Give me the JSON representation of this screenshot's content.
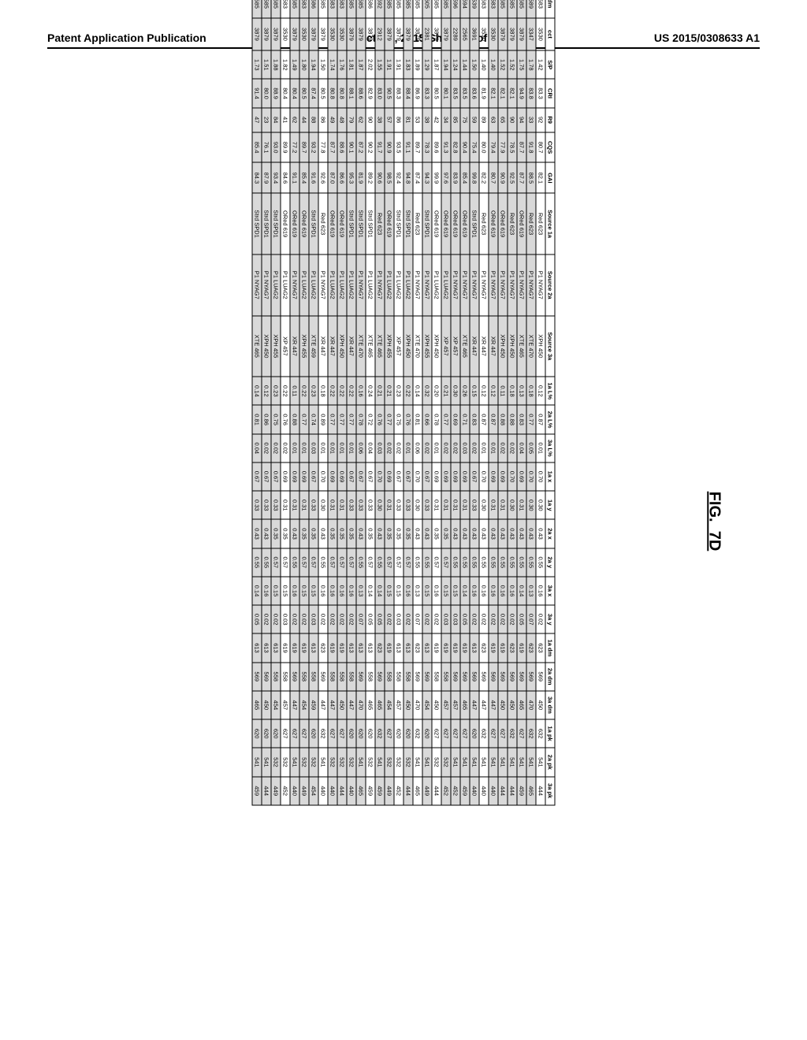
{
  "header": {
    "left": "Patent Application Publication",
    "center": "Oct. 29, 2015  Sheet 12 of 25",
    "right": "US 2015/0308633 A1"
  },
  "figure_label": "FIG._7D",
  "columns": [
    "#",
    "x",
    "y",
    "dm",
    "cct",
    "S/P",
    "CRI",
    "R9",
    "CQS",
    "GAI",
    "Source 1a",
    "Source 2a",
    "Source 3a",
    "1a L%",
    "2a L%",
    "3a L%",
    "1a x",
    "1a y",
    "2a x",
    "2a y",
    "3a x",
    "3a y",
    "1a dm",
    "2a dm",
    "3a dm",
    "1a pk",
    "2a pk",
    "3a pk"
  ],
  "shaded_rows": [
    95,
    96,
    97,
    98,
    99,
    101,
    102,
    103,
    104,
    106,
    108,
    110,
    111,
    113,
    114,
    115,
    116,
    118,
    119,
    120,
    122,
    123,
    124
  ],
  "rows": [
    {
      "n": 94,
      "x": 0.4,
      "y": 0.38,
      "dm": 583,
      "cct": 3530,
      "sp": 1.42,
      "cri": 83.3,
      "r9": 92,
      "cqs": 80.7,
      "gai": 82.1,
      "s1": "Red 623",
      "s2": "P1 NYAG7",
      "s3": "XPH 450",
      "l1": 0.12,
      "l2": 0.87,
      "l3": 0.01,
      "x1": 0.7,
      "y1": 0.3,
      "x2": 0.43,
      "y2": 0.55,
      "x3": 0.16,
      "y3": 0.02,
      "d1": 623,
      "d2": 569,
      "d3": 450,
      "p1": 632,
      "p2": 541,
      "p3": 444
    },
    {
      "n": 95,
      "x": 0.4,
      "y": 0.36,
      "dm": 589,
      "cct": 3347,
      "sp": 1.78,
      "cri": 83.8,
      "r9": 33,
      "cqs": 91.8,
      "gai": 88.5,
      "s1": "Red 623",
      "s2": "P1 NYAG7",
      "s3": "XTE 470",
      "l1": 0.18,
      "l2": 0.77,
      "l3": 0.05,
      "x1": 0.7,
      "y1": 0.3,
      "x2": 0.43,
      "y2": 0.55,
      "x3": 0.13,
      "y3": 0.07,
      "d1": 623,
      "d2": 569,
      "d3": 470,
      "p1": 632,
      "p2": 541,
      "p3": 465
    },
    {
      "n": 96,
      "x": 0.38,
      "y": 0.36,
      "dm": 585,
      "cct": 3879,
      "sp": 1.75,
      "cri": 94.9,
      "r9": 94,
      "cqs": 87.7,
      "gai": 87.7,
      "s1": "ORed 619",
      "s2": "P1 NYAG7",
      "s3": "XTE 465",
      "l1": 0.13,
      "l2": 0.83,
      "l3": 0.04,
      "x1": 0.69,
      "y1": 0.31,
      "x2": 0.43,
      "y2": 0.55,
      "x3": 0.14,
      "y3": 0.05,
      "d1": 619,
      "d2": 569,
      "d3": 465,
      "p1": 627,
      "p2": 541,
      "p3": 459
    },
    {
      "n": 97,
      "x": 0.38,
      "y": 0.36,
      "dm": 585,
      "cct": 3879,
      "sp": 1.52,
      "cri": 82.1,
      "r9": 90,
      "cqs": 78.5,
      "gai": 92.5,
      "s1": "Red 623",
      "s2": "P1 NYAG7",
      "s3": "XPH 450",
      "l1": 0.18,
      "l2": 0.88,
      "l3": 0.02,
      "x1": 0.7,
      "y1": 0.3,
      "x2": 0.43,
      "y2": 0.55,
      "x3": 0.16,
      "y3": 0.02,
      "d1": 623,
      "d2": 569,
      "d3": 450,
      "p1": 632,
      "p2": 541,
      "p3": 444
    },
    {
      "n": 98,
      "x": 0.38,
      "y": 0.36,
      "dm": 585,
      "cct": 3879,
      "sp": 1.52,
      "cri": 82.1,
      "r9": 65,
      "cqs": 77.9,
      "gai": 90.9,
      "s1": "ORed 619",
      "s2": "P1 NYAG7",
      "s3": "XPH 450",
      "l1": 0.11,
      "l2": 0.88,
      "l3": 0.02,
      "x1": 0.69,
      "y1": 0.31,
      "x2": 0.43,
      "y2": 0.55,
      "x3": 0.16,
      "y3": 0.02,
      "d1": 619,
      "d2": 569,
      "d3": 450,
      "p1": 627,
      "p2": 541,
      "p3": 444
    },
    {
      "n": 99,
      "x": 0.4,
      "y": 0.38,
      "dm": 583,
      "cct": 3530,
      "sp": 1.4,
      "cri": 82.1,
      "r9": 63,
      "cqs": 79.4,
      "gai": 80.7,
      "s1": "ORed 619",
      "s2": "P1 NYAG7",
      "s3": "XR 447",
      "l1": 0.12,
      "l2": 0.87,
      "l3": 0.01,
      "x1": 0.69,
      "y1": 0.31,
      "x2": 0.43,
      "y2": 0.55,
      "x3": 0.16,
      "y3": 0.02,
      "d1": 619,
      "d2": 569,
      "d3": 447,
      "p1": 627,
      "p2": 541,
      "p3": 440
    },
    {
      "n": 100,
      "x": 0.4,
      "y": 0.36,
      "dm": 583,
      "cct": 3530,
      "sp": 1.4,
      "cri": 81.9,
      "r9": 89,
      "cqs": 80.0,
      "gai": 82.2,
      "s1": "Red 623",
      "s2": "P1 NYAG7",
      "s3": "XR 447",
      "l1": 0.12,
      "l2": 0.87,
      "l3": 0.01,
      "x1": 0.7,
      "y1": 0.3,
      "x2": 0.43,
      "y2": 0.55,
      "x3": 0.16,
      "y3": 0.02,
      "d1": 623,
      "d2": 569,
      "d3": 447,
      "p1": 632,
      "p2": 541,
      "p3": 440
    },
    {
      "n": 101,
      "x": 0.38,
      "y": 0.34,
      "dm": 539,
      "cct": 3691,
      "sp": 1.5,
      "cri": 83.6,
      "r9": 59,
      "cqs": 75.4,
      "gai": 99.8,
      "s1": "Strd SPD1",
      "s2": "P1 NYAG7",
      "s3": "XR 447",
      "l1": 0.15,
      "l2": 0.83,
      "l3": 0.02,
      "x1": 0.67,
      "y1": 0.33,
      "x2": 0.43,
      "y2": 0.55,
      "x3": 0.16,
      "y3": 0.02,
      "d1": 613,
      "d2": 569,
      "d3": 447,
      "p1": 620,
      "p2": 541,
      "p3": 440
    },
    {
      "n": 102,
      "x": 0.44,
      "y": 0.4,
      "dm": 594,
      "cct": 2565,
      "sp": 1.44,
      "cri": 83.5,
      "r9": 75,
      "cqs": 90.4,
      "gai": 85.4,
      "s1": "ORed 619",
      "s2": "P1 NYAG7",
      "s3": "XTE 465",
      "l1": 0.26,
      "l2": 0.71,
      "l3": 0.03,
      "x1": 0.69,
      "y1": 0.31,
      "x2": 0.43,
      "y2": 0.55,
      "x3": 0.14,
      "y3": 0.05,
      "d1": 619,
      "d2": 569,
      "d3": 465,
      "p1": 627,
      "p2": 541,
      "p3": 459
    },
    {
      "n": 103,
      "x": 0.46,
      "y": 0.36,
      "dm": 596,
      "cct": 2289,
      "sp": 1.24,
      "cri": 83.5,
      "r9": 85,
      "cqs": 82.8,
      "gai": 83.9,
      "s1": "ORed 619",
      "s2": "P1 NYAG7",
      "s3": "XP 457",
      "l1": 0.3,
      "l2": 0.69,
      "l3": 0.02,
      "x1": 0.69,
      "y1": 0.31,
      "x2": 0.43,
      "y2": 0.55,
      "x3": 0.15,
      "y3": 0.03,
      "d1": 619,
      "d2": 569,
      "d3": 457,
      "p1": 627,
      "p2": 541,
      "p3": 452
    },
    {
      "n": 104,
      "x": 0.38,
      "y": 0.36,
      "dm": 585,
      "cct": 3879,
      "sp": 1.94,
      "cri": 80.1,
      "r9": 34,
      "cqs": 91.3,
      "gai": 97.6,
      "s1": "ORed 619",
      "s2": "P1 LUAG2",
      "s3": "XP 457",
      "l1": 0.21,
      "l2": 0.77,
      "l3": 0.02,
      "x1": 0.69,
      "y1": 0.31,
      "x2": 0.35,
      "y2": 0.57,
      "x3": 0.15,
      "y3": 0.03,
      "d1": 619,
      "d2": 558,
      "d3": 457,
      "p1": 627,
      "p2": 532,
      "p3": 452
    },
    {
      "n": 105,
      "x": 0.38,
      "y": 0.36,
      "dm": 585,
      "cct": 3879,
      "sp": 1.87,
      "cri": 80.5,
      "r9": 42,
      "cqs": 89.6,
      "gai": 99.9,
      "s1": "ORed 619",
      "s2": "P1 LUAG2",
      "s3": "XPH 450",
      "l1": 0.2,
      "l2": 0.78,
      "l3": 0.01,
      "x1": 0.69,
      "y1": 0.31,
      "x2": 0.35,
      "y2": 0.57,
      "x3": 0.16,
      "y3": 0.02,
      "d1": 619,
      "d2": 558,
      "d3": 450,
      "p1": 627,
      "p2": 532,
      "p3": 444
    },
    {
      "n": 106,
      "x": 0.44,
      "y": 0.34,
      "dm": 605,
      "cct": 2381,
      "sp": 1.29,
      "cri": 83.3,
      "r9": 38,
      "cqs": 78.3,
      "gai": 94.3,
      "s1": "Strd SPD1",
      "s2": "P1 NYAG7",
      "s3": "XPH 455",
      "l1": 0.32,
      "l2": 0.66,
      "l3": 0.02,
      "x1": 0.67,
      "y1": 0.33,
      "x2": 0.43,
      "y2": 0.55,
      "x3": 0.15,
      "y3": 0.02,
      "d1": 613,
      "d2": 569,
      "d3": 454,
      "p1": 620,
      "p2": 541,
      "p3": 449
    },
    {
      "n": 107,
      "x": 0.38,
      "y": 0.36,
      "dm": 585,
      "cct": 3879,
      "sp": 1.89,
      "cri": 86.9,
      "r9": 53,
      "cqs": 89.7,
      "gai": 87.4,
      "s1": "Red 623",
      "s2": "P1 NYAG7",
      "s3": "XTE 470",
      "l1": 0.14,
      "l2": 0.81,
      "l3": 0.06,
      "x1": 0.7,
      "y1": 0.3,
      "x2": 0.43,
      "y2": 0.55,
      "x3": 0.13,
      "y3": 0.07,
      "d1": 623,
      "d2": 569,
      "d3": 470,
      "p1": 632,
      "p2": 541,
      "p3": 465
    },
    {
      "n": 108,
      "x": 0.38,
      "y": 0.36,
      "dm": 585,
      "cct": 3879,
      "sp": 1.83,
      "cri": 88.4,
      "r9": 81,
      "cqs": 91.1,
      "gai": 94.8,
      "s1": "Strd SPD1",
      "s2": "P1 LUAG2",
      "s3": "XPH 450",
      "l1": 0.22,
      "l2": 0.76,
      "l3": 0.01,
      "x1": 0.67,
      "y1": 0.33,
      "x2": 0.35,
      "y2": 0.57,
      "x3": 0.16,
      "y3": 0.02,
      "d1": 613,
      "d2": 558,
      "d3": 450,
      "p1": 620,
      "p2": 532,
      "p3": 444
    },
    {
      "n": 109,
      "x": 0.38,
      "y": 0.36,
      "dm": 585,
      "cct": 3879,
      "sp": 1.91,
      "cri": 88.3,
      "r9": 86,
      "cqs": 93.5,
      "gai": 92.4,
      "s1": "Strd SPD1",
      "s2": "P1 LUAG2",
      "s3": "XP 457",
      "l1": 0.23,
      "l2": 0.75,
      "l3": 0.02,
      "x1": 0.67,
      "y1": 0.33,
      "x2": 0.35,
      "y2": 0.57,
      "x3": 0.15,
      "y3": 0.03,
      "d1": 613,
      "d2": 558,
      "d3": 457,
      "p1": 620,
      "p2": 532,
      "p3": 452
    },
    {
      "n": 110,
      "x": 0.38,
      "y": 0.36,
      "dm": 585,
      "cct": 3879,
      "sp": 1.91,
      "cri": 90.5,
      "r9": 57,
      "cqs": 90.9,
      "gai": 98.5,
      "s1": "ORed 619",
      "s2": "P1 LUAG2",
      "s3": "XPH 455",
      "l1": 0.21,
      "l2": 0.77,
      "l3": 0.02,
      "x1": 0.69,
      "y1": 0.31,
      "x2": 0.35,
      "y2": 0.57,
      "x3": 0.15,
      "y3": 0.02,
      "d1": 619,
      "d2": 558,
      "d3": 454,
      "p1": 627,
      "p2": 532,
      "p3": 449
    },
    {
      "n": 111,
      "x": 0.42,
      "y": 0.36,
      "dm": 592,
      "cct": 2912,
      "sp": 1.55,
      "cri": 83.0,
      "r9": 38,
      "cqs": 91.7,
      "gai": 90.6,
      "s1": "Red 623",
      "s2": "P1 NYAG7",
      "s3": "XTE 465",
      "l1": 0.21,
      "l2": 0.76,
      "l3": 0.03,
      "x1": 0.7,
      "y1": 0.3,
      "x2": 0.43,
      "y2": 0.55,
      "x3": 0.14,
      "y3": 0.05,
      "d1": 623,
      "d2": 569,
      "d3": 465,
      "p1": 632,
      "p2": 541,
      "p3": 459
    },
    {
      "n": 112,
      "x": 0.38,
      "y": 0.36,
      "dm": 586,
      "cct": 3879,
      "sp": 2.02,
      "cri": 82.9,
      "r9": 90,
      "cqs": 90.2,
      "gai": 89.2,
      "s1": "Strd SPD1",
      "s2": "P1 LUAG2",
      "s3": "XTE 465",
      "l1": 0.24,
      "l2": 0.72,
      "l3": 0.04,
      "x1": 0.67,
      "y1": 0.33,
      "x2": 0.35,
      "y2": 0.57,
      "x3": 0.14,
      "y3": 0.05,
      "d1": 613,
      "d2": 558,
      "d3": 465,
      "p1": 620,
      "p2": 532,
      "p3": 459
    },
    {
      "n": 113,
      "x": 0.38,
      "y": 0.36,
      "dm": 585,
      "cct": 3879,
      "sp": 1.87,
      "cri": 88.6,
      "r9": 62,
      "cqs": 87.2,
      "gai": 81.9,
      "s1": "Strd SPD1",
      "s2": "P1 NYAG7",
      "s3": "XTE 470",
      "l1": 0.16,
      "l2": 0.78,
      "l3": 0.06,
      "x1": 0.67,
      "y1": 0.33,
      "x2": 0.43,
      "y2": 0.55,
      "x3": 0.13,
      "y3": 0.07,
      "d1": 613,
      "d2": 569,
      "d3": 470,
      "p1": 620,
      "p2": 541,
      "p3": 465
    },
    {
      "n": 114,
      "x": 0.38,
      "y": 0.36,
      "dm": 585,
      "cct": 3879,
      "sp": 1.81,
      "cri": 88.1,
      "r9": 79,
      "cqs": 90.1,
      "gai": 95.3,
      "s1": "Strd SPD1",
      "s2": "P1 LUAG2",
      "s3": "XR 447",
      "l1": 0.22,
      "l2": 0.77,
      "l3": 0.01,
      "x1": 0.67,
      "y1": 0.33,
      "x2": 0.35,
      "y2": 0.57,
      "x3": 0.16,
      "y3": 0.02,
      "d1": 613,
      "d2": 558,
      "d3": 447,
      "p1": 620,
      "p2": 532,
      "p3": 440
    },
    {
      "n": 115,
      "x": 0.4,
      "y": 0.36,
      "dm": 583,
      "cct": 3530,
      "sp": 1.76,
      "cri": 80.8,
      "r9": 48,
      "cqs": 88.6,
      "gai": 86.6,
      "s1": "ORed 619",
      "s2": "P1 LUAG2",
      "s3": "XPH 450",
      "l1": 0.22,
      "l2": 0.77,
      "l3": 0.01,
      "x1": 0.69,
      "y1": 0.31,
      "x2": 0.35,
      "y2": 0.57,
      "x3": 0.16,
      "y3": 0.02,
      "d1": 619,
      "d2": 558,
      "d3": 450,
      "p1": 627,
      "p2": 532,
      "p3": 444
    },
    {
      "n": 116,
      "x": 0.4,
      "y": 0.38,
      "dm": 583,
      "cct": 3530,
      "sp": 1.74,
      "cri": 80.8,
      "r9": 49,
      "cqs": 87.7,
      "gai": 87.0,
      "s1": "ORed 619",
      "s2": "P1 LUAG2",
      "s3": "XR 447",
      "l1": 0.22,
      "l2": 0.77,
      "l3": 0.01,
      "x1": 0.69,
      "y1": 0.31,
      "x2": 0.35,
      "y2": 0.57,
      "x3": 0.16,
      "y3": 0.02,
      "d1": 619,
      "d2": 558,
      "d3": 447,
      "p1": 627,
      "p2": 532,
      "p3": 440
    },
    {
      "n": 117,
      "x": 0.38,
      "y": 0.36,
      "dm": 585,
      "cct": 3879,
      "sp": 1.5,
      "cri": 80.5,
      "r9": 86,
      "cqs": 77.8,
      "gai": 92.6,
      "s1": "Red 623",
      "s2": "P1 NYAG7",
      "s3": "XR 447",
      "l1": 0.18,
      "l2": 0.89,
      "l3": 0.01,
      "x1": 0.7,
      "y1": 0.3,
      "x2": 0.43,
      "y2": 0.55,
      "x3": 0.16,
      "y3": 0.02,
      "d1": 623,
      "d2": 569,
      "d3": 447,
      "p1": 632,
      "p2": 541,
      "p3": 440
    },
    {
      "n": 118,
      "x": 0.38,
      "y": 0.36,
      "dm": 586,
      "cct": 3879,
      "sp": 1.94,
      "cri": 87.4,
      "r9": 88,
      "cqs": 93.2,
      "gai": 91.6,
      "s1": "Strd SPD1",
      "s2": "P1 LUAG2",
      "s3": "XTE 459",
      "l1": 0.23,
      "l2": 0.74,
      "l3": 0.03,
      "x1": 0.67,
      "y1": 0.33,
      "x2": 0.35,
      "y2": 0.57,
      "x3": 0.15,
      "y3": 0.03,
      "d1": 613,
      "d2": 558,
      "d3": 459,
      "p1": 620,
      "p2": 532,
      "p3": 454
    },
    {
      "n": 119,
      "x": 0.4,
      "y": 0.38,
      "dm": 583,
      "cct": 3530,
      "sp": 1.8,
      "cri": 80.5,
      "r9": 44,
      "cqs": 89.7,
      "gai": 85.4,
      "s1": "ORed 619",
      "s2": "P1 LUAG2",
      "s3": "XPH 455",
      "l1": 0.22,
      "l2": 0.77,
      "l3": 0.01,
      "x1": 0.69,
      "y1": 0.31,
      "x2": 0.35,
      "y2": 0.57,
      "x3": 0.15,
      "y3": 0.02,
      "d1": 619,
      "d2": 558,
      "d3": 454,
      "p1": 627,
      "p2": 532,
      "p3": 449
    },
    {
      "n": 120,
      "x": 0.38,
      "y": 0.36,
      "dm": 585,
      "cct": 3879,
      "sp": 1.49,
      "cri": 80.4,
      "r9": 62,
      "cqs": 77.2,
      "gai": 91.1,
      "s1": "ORed 619",
      "s2": "P1 NYAG7",
      "s3": "XR 447",
      "l1": 0.11,
      "l2": 0.88,
      "l3": 0.01,
      "x1": 0.69,
      "y1": 0.31,
      "x2": 0.43,
      "y2": 0.55,
      "x3": 0.16,
      "y3": 0.02,
      "d1": 619,
      "d2": 569,
      "d3": 447,
      "p1": 627,
      "p2": 541,
      "p3": 440
    },
    {
      "n": 121,
      "x": 0.4,
      "y": 0.38,
      "dm": 583,
      "cct": 3530,
      "sp": 1.82,
      "cri": 80.4,
      "r9": 41,
      "cqs": 89.9,
      "gai": 84.6,
      "s1": "ORed 619",
      "s2": "P1 LUAG2",
      "s3": "XP 457",
      "l1": 0.22,
      "l2": 0.76,
      "l3": 0.02,
      "x1": 0.69,
      "y1": 0.31,
      "x2": 0.35,
      "y2": 0.57,
      "x3": 0.15,
      "y3": 0.03,
      "d1": 619,
      "d2": 558,
      "d3": 457,
      "p1": 627,
      "p2": 532,
      "p3": 452
    },
    {
      "n": 122,
      "x": 0.38,
      "y": 0.36,
      "dm": 585,
      "cct": 3879,
      "sp": 1.88,
      "cri": 88.9,
      "r9": 84,
      "cqs": 93.0,
      "gai": 93.4,
      "s1": "Strd SPD1",
      "s2": "P1 LUAG2",
      "s3": "XPH 455",
      "l1": 0.23,
      "l2": 0.75,
      "l3": 0.02,
      "x1": 0.67,
      "y1": 0.33,
      "x2": 0.35,
      "y2": 0.57,
      "x3": 0.15,
      "y3": 0.02,
      "d1": 613,
      "d2": 558,
      "d3": 454,
      "p1": 620,
      "p2": 532,
      "p3": 449
    },
    {
      "n": 123,
      "x": 0.38,
      "y": 0.36,
      "dm": 585,
      "cct": 3879,
      "sp": 1.51,
      "cri": 80.0,
      "r9": 23,
      "cqs": 76.1,
      "gai": 87.9,
      "s1": "Strd SPD1",
      "s2": "P1 NYAG7",
      "s3": "XPH 450",
      "l1": 0.12,
      "l2": 0.86,
      "l3": 0.02,
      "x1": 0.67,
      "y1": 0.33,
      "x2": 0.43,
      "y2": 0.55,
      "x3": 0.16,
      "y3": 0.02,
      "d1": 613,
      "d2": 569,
      "d3": 450,
      "p1": 620,
      "p2": 541,
      "p3": 444
    },
    {
      "n": 124,
      "x": 0.38,
      "y": 0.36,
      "dm": 585,
      "cct": 3879,
      "sp": 1.73,
      "cri": 91.4,
      "r9": 47,
      "cqs": 85.4,
      "gai": 84.3,
      "s1": "Strd SPD1",
      "s2": "P1 NYAG7",
      "s3": "XTE 465",
      "l1": 0.14,
      "l2": 0.81,
      "l3": 0.04,
      "x1": 0.67,
      "y1": 0.33,
      "x2": 0.43,
      "y2": 0.55,
      "x3": 0.14,
      "y3": 0.05,
      "d1": 613,
      "d2": 569,
      "d3": 465,
      "p1": 620,
      "p2": 541,
      "p3": 459
    }
  ]
}
